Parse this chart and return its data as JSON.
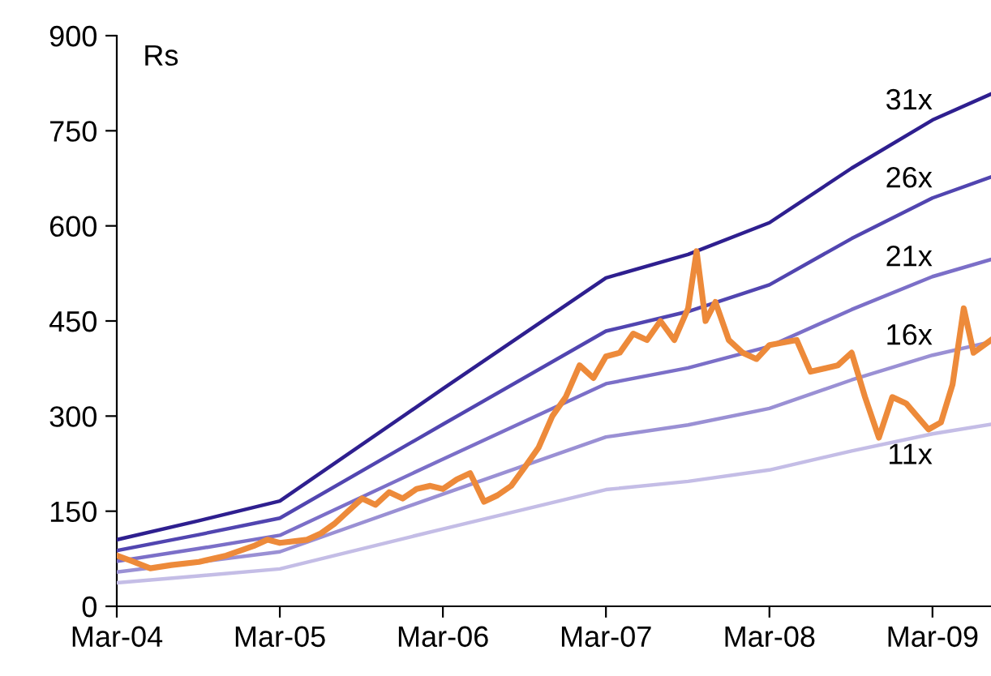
{
  "chart_data": {
    "type": "line",
    "ylabel": "Rs",
    "xlim": [
      "2004-03-01",
      "2009-07-10"
    ],
    "xticks": [
      {
        "value": "2004-03-01",
        "label": "Mar-04"
      },
      {
        "value": "2005-03-01",
        "label": "Mar-05"
      },
      {
        "value": "2006-03-01",
        "label": "Mar-06"
      },
      {
        "value": "2007-03-01",
        "label": "Mar-07"
      },
      {
        "value": "2008-03-01",
        "label": "Mar-08"
      },
      {
        "value": "2009-03-01",
        "label": "Mar-09"
      }
    ],
    "ylim": [
      0,
      900
    ],
    "yticks": [
      0,
      150,
      300,
      450,
      600,
      750,
      900
    ],
    "grid": false,
    "legend": false,
    "marker": "none",
    "line_style": "solid",
    "series": [
      {
        "name": "31x",
        "color": "#2e1f8f",
        "x": [
          "2004-03-01",
          "2004-09-01",
          "2005-03-01",
          "2006-03-01",
          "2007-03-01",
          "2007-09-01",
          "2008-03-01",
          "2008-09-01",
          "2009-03-01",
          "2009-07-10"
        ],
        "values": [
          105,
          135,
          166,
          343,
          518,
          555,
          605,
          691,
          767,
          808
        ]
      },
      {
        "name": "26x",
        "color": "#5145b0",
        "x": [
          "2004-03-01",
          "2004-09-01",
          "2005-03-01",
          "2006-03-01",
          "2007-03-01",
          "2007-09-01",
          "2008-03-01",
          "2008-09-01",
          "2009-03-01",
          "2009-07-10"
        ],
        "values": [
          88,
          113,
          139,
          287,
          434,
          465,
          507,
          580,
          644,
          677
        ]
      },
      {
        "name": "21x",
        "color": "#7b6fc8",
        "x": [
          "2004-03-01",
          "2004-09-01",
          "2005-03-01",
          "2006-03-01",
          "2007-03-01",
          "2007-09-01",
          "2008-03-01",
          "2008-09-01",
          "2009-03-01",
          "2009-07-10"
        ],
        "values": [
          71,
          91,
          112,
          232,
          351,
          376,
          410,
          468,
          520,
          547
        ]
      },
      {
        "name": "16x",
        "color": "#9a90d4",
        "x": [
          "2004-03-01",
          "2004-09-01",
          "2005-03-01",
          "2006-03-01",
          "2007-03-01",
          "2007-09-01",
          "2008-03-01",
          "2008-09-01",
          "2009-03-01",
          "2009-07-10"
        ],
        "values": [
          54,
          70,
          86,
          177,
          267,
          286,
          312,
          357,
          396,
          417
        ]
      },
      {
        "name": "11x",
        "color": "#c4bde6",
        "x": [
          "2004-03-01",
          "2004-09-01",
          "2005-03-01",
          "2006-03-01",
          "2007-03-01",
          "2007-09-01",
          "2008-03-01",
          "2008-09-01",
          "2009-03-01",
          "2009-07-10"
        ],
        "values": [
          37,
          48,
          59,
          122,
          184,
          197,
          215,
          245,
          272,
          287
        ]
      },
      {
        "color": "#ed8a3a",
        "x": [
          "2004-03-01",
          "2004-04-01",
          "2004-05-15",
          "2004-07-01",
          "2004-09-01",
          "2004-11-01",
          "2005-01-01",
          "2005-02-01",
          "2005-03-01",
          "2005-05-01",
          "2005-06-01",
          "2005-07-01",
          "2005-08-01",
          "2005-09-01",
          "2005-10-01",
          "2005-11-01",
          "2005-12-01",
          "2006-01-01",
          "2006-02-01",
          "2006-03-01",
          "2006-04-01",
          "2006-05-01",
          "2006-06-01",
          "2006-07-01",
          "2006-08-01",
          "2006-09-01",
          "2006-10-01",
          "2006-11-01",
          "2006-12-01",
          "2007-01-01",
          "2007-02-01",
          "2007-03-01",
          "2007-04-01",
          "2007-05-01",
          "2007-06-01",
          "2007-07-01",
          "2007-08-01",
          "2007-09-01",
          "2007-09-20",
          "2007-10-10",
          "2007-11-01",
          "2007-12-01",
          "2008-01-01",
          "2008-02-01",
          "2008-03-01",
          "2008-05-01",
          "2008-06-01",
          "2008-08-01",
          "2008-09-01",
          "2008-10-01",
          "2008-11-01",
          "2008-12-01",
          "2009-01-01",
          "2009-02-20",
          "2009-03-20",
          "2009-04-15",
          "2009-05-10",
          "2009-06-01",
          "2009-07-10"
        ],
        "values": [
          80,
          72,
          60,
          65,
          70,
          80,
          95,
          105,
          100,
          105,
          115,
          130,
          150,
          170,
          160,
          180,
          170,
          185,
          190,
          185,
          200,
          210,
          165,
          175,
          190,
          220,
          250,
          300,
          330,
          380,
          360,
          394,
          400,
          430,
          420,
          450,
          420,
          470,
          560,
          450,
          480,
          420,
          400,
          390,
          412,
          420,
          370,
          380,
          400,
          330,
          266,
          330,
          320,
          279,
          290,
          350,
          470,
          400,
          420
        ]
      }
    ]
  }
}
